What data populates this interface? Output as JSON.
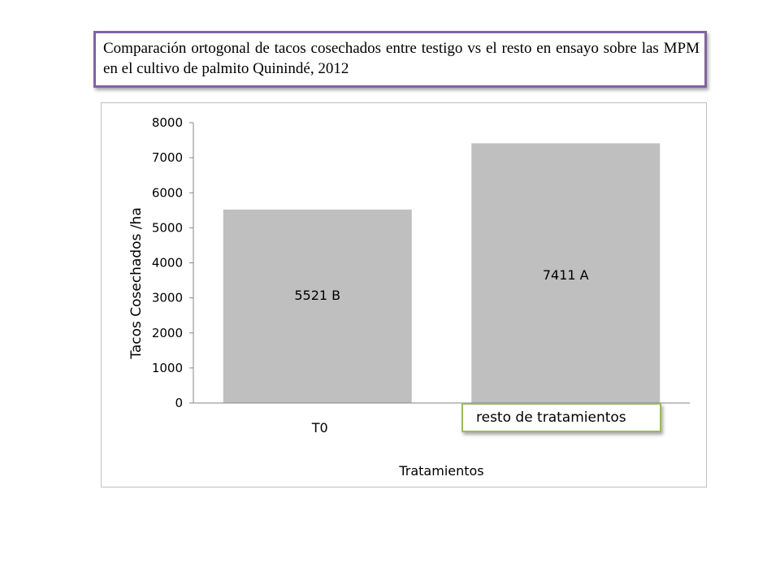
{
  "title": "Comparación ortogonal de tacos cosechados entre testigo vs el resto en ensayo sobre las MPM  en el cultivo de palmito Quinindé, 2012",
  "colors": {
    "bar": "#bfbfbf",
    "title_border": "#8064A2",
    "callout_border": "#9BBB59"
  },
  "chart_data": {
    "type": "bar",
    "categories": [
      "T0",
      "resto de tratamientos"
    ],
    "values": [
      5521,
      7411
    ],
    "data_labels": [
      "5521 B",
      "7411 A"
    ],
    "xlabel": "Tratamientos",
    "ylabel": "Tacos Cosechados /ha",
    "ylim": [
      0,
      8000
    ],
    "yticks": [
      "0",
      "1000",
      "2000",
      "3000",
      "4000",
      "5000",
      "6000",
      "7000",
      "8000"
    ],
    "grid": false,
    "legend": "none"
  }
}
